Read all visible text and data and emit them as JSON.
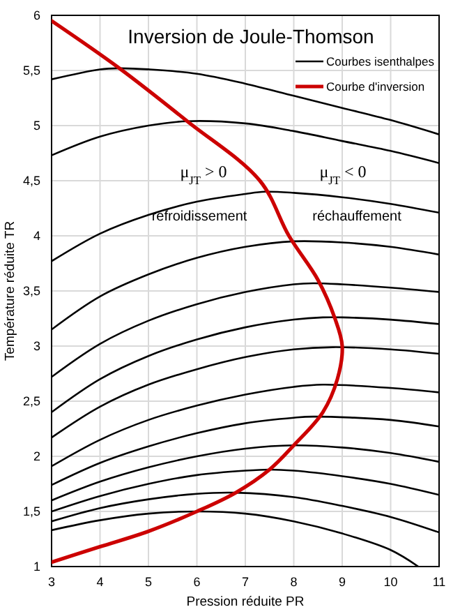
{
  "chart_data": {
    "type": "line",
    "title": "Inversion de Joule-Thomson",
    "xlabel": "Pression réduite PR",
    "ylabel": "Température réduite TR",
    "annotations": [
      "μ$_{JT}$ > 0",
      "refroidissement",
      "μ$_{JT}$ < 0",
      "réchauffement"
    ],
    "xlim": [
      3,
      11
    ],
    "xticks": [
      3,
      4,
      5,
      6,
      7,
      8,
      9,
      10,
      11
    ],
    "ylim": [
      1,
      6
    ],
    "yticks": [
      1,
      {
        "value": 1.5,
        "label": "1,5"
      },
      2,
      {
        "value": 2.5,
        "label": "2,5"
      },
      3,
      {
        "value": 3.5,
        "label": "3,5"
      },
      4,
      {
        "value": 4.5,
        "label": "4,5"
      },
      5,
      {
        "value": 5.5,
        "label": "5,5"
      },
      6
    ],
    "grid": true,
    "legend": "top right",
    "line_style": "solid",
    "marker": "none",
    "series": [
      {
        "name": "Courbes isenthalpes",
        "color": "#000000",
        "x": [
          3,
          4,
          4.4,
          5,
          6,
          7,
          8,
          9,
          10,
          11
        ],
        "values": [
          5.42,
          5.51,
          5.52,
          5.51,
          5.47,
          5.38,
          5.27,
          5.16,
          5.05,
          4.92
        ]
      },
      {
        "color": "#000000",
        "x": [
          3,
          4,
          5,
          5.8,
          7,
          8,
          9,
          10,
          11
        ],
        "values": [
          4.73,
          4.9,
          5.0,
          5.04,
          5.02,
          4.95,
          4.86,
          4.77,
          4.66
        ]
      },
      {
        "color": "#000000",
        "x": [
          3,
          4,
          5,
          6,
          7,
          7.4,
          8,
          9,
          10,
          11
        ],
        "values": [
          3.77,
          4.02,
          4.19,
          4.31,
          4.38,
          4.4,
          4.39,
          4.35,
          4.29,
          4.21
        ]
      },
      {
        "color": "#000000",
        "x": [
          3,
          4,
          5,
          6,
          7,
          8,
          9,
          10,
          11
        ],
        "values": [
          3.15,
          3.45,
          3.65,
          3.8,
          3.9,
          3.95,
          3.94,
          3.9,
          3.83
        ]
      },
      {
        "color": "#000000",
        "x": [
          3,
          4,
          5,
          6,
          7,
          8,
          8.4,
          9,
          10,
          11
        ],
        "values": [
          2.72,
          3.02,
          3.23,
          3.38,
          3.49,
          3.56,
          3.57,
          3.56,
          3.53,
          3.49
        ]
      },
      {
        "color": "#000000",
        "x": [
          3,
          4,
          5,
          6,
          7,
          8,
          8.6,
          9,
          10,
          11
        ],
        "values": [
          2.4,
          2.7,
          2.91,
          3.06,
          3.17,
          3.24,
          3.26,
          3.26,
          3.24,
          3.2
        ]
      },
      {
        "color": "#000000",
        "x": [
          3,
          4,
          5,
          6,
          7,
          8,
          8.8,
          10,
          11
        ],
        "values": [
          2.17,
          2.45,
          2.65,
          2.79,
          2.9,
          2.97,
          2.99,
          2.97,
          2.93
        ]
      },
      {
        "color": "#000000",
        "x": [
          3,
          4,
          5,
          6,
          7,
          8,
          8.6,
          10,
          11
        ],
        "values": [
          1.91,
          2.15,
          2.33,
          2.46,
          2.56,
          2.63,
          2.65,
          2.62,
          2.58
        ]
      },
      {
        "color": "#000000",
        "x": [
          3,
          4,
          5,
          6,
          7,
          8,
          8.4,
          10,
          11
        ],
        "values": [
          1.74,
          1.94,
          2.09,
          2.21,
          2.3,
          2.35,
          2.36,
          2.33,
          2.27
        ]
      },
      {
        "color": "#000000",
        "x": [
          3,
          4,
          5,
          6,
          7,
          8,
          9,
          10,
          11
        ],
        "values": [
          1.6,
          1.77,
          1.9,
          2.0,
          2.07,
          2.1,
          2.08,
          2.03,
          1.95
        ]
      },
      {
        "color": "#000000",
        "x": [
          3,
          4,
          5,
          6,
          7,
          7.5,
          8,
          9,
          10,
          11
        ],
        "values": [
          1.5,
          1.64,
          1.75,
          1.83,
          1.87,
          1.88,
          1.87,
          1.82,
          1.75,
          1.65
        ]
      },
      {
        "color": "#000000",
        "x": [
          3,
          4,
          5,
          6,
          6.8,
          8,
          9,
          10,
          11
        ],
        "values": [
          1.41,
          1.53,
          1.61,
          1.66,
          1.67,
          1.63,
          1.55,
          1.45,
          1.31
        ]
      },
      {
        "color": "#000000",
        "x": [
          3,
          4,
          5,
          6,
          7,
          8,
          9,
          10,
          10.57
        ],
        "values": [
          1.33,
          1.42,
          1.48,
          1.5,
          1.48,
          1.41,
          1.3,
          1.15,
          1.0
        ]
      },
      {
        "name": "Courbe d'inversion",
        "color": "#cc0000",
        "x": [
          3,
          4.4,
          5.8,
          7.3,
          7.9,
          8.5,
          8.85,
          9.0,
          8.9,
          8.6,
          8.0,
          7.5,
          6.8,
          6.0,
          5.0,
          4.0,
          3.0
        ],
        "values": [
          5.95,
          5.52,
          5.04,
          4.5,
          4.0,
          3.6,
          3.25,
          3.0,
          2.7,
          2.4,
          2.1,
          1.88,
          1.67,
          1.5,
          1.32,
          1.18,
          1.04
        ]
      }
    ]
  }
}
